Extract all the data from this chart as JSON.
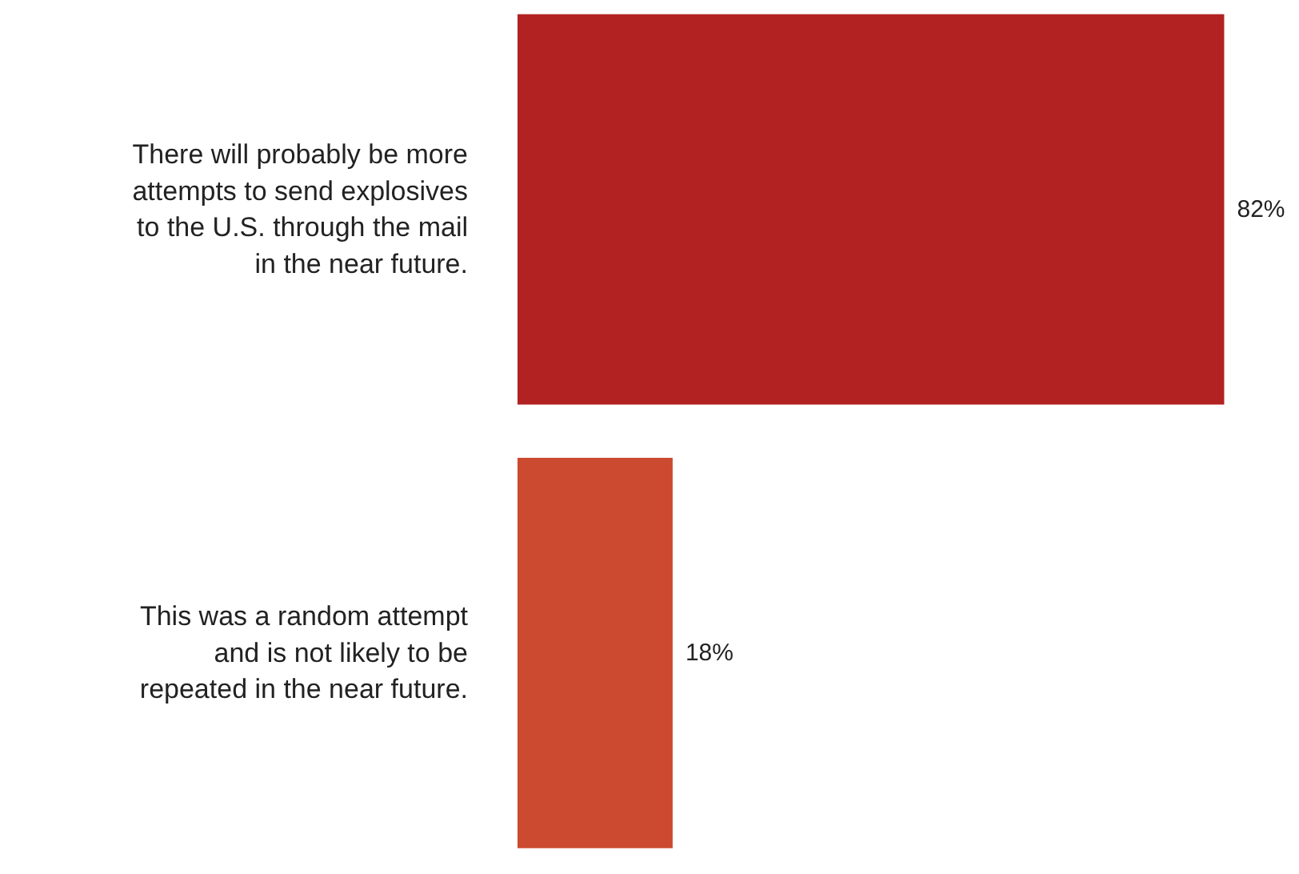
{
  "chart_data": {
    "type": "bar",
    "orientation": "horizontal",
    "categories": [
      "There will probably be more attempts to send explosives to the U.S. through the mail in the near future.",
      "This was a random attempt and is not likely to be repeated in the near future."
    ],
    "values": [
      82,
      18
    ],
    "colors": [
      "#b22222",
      "#cc4a30"
    ],
    "value_labels": [
      "82%",
      "18%"
    ]
  }
}
